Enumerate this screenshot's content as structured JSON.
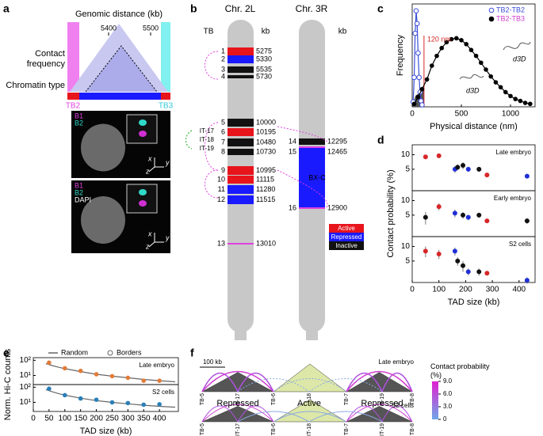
{
  "panel_labels": [
    "a",
    "b",
    "c",
    "d",
    "e",
    "f"
  ],
  "panel_a": {
    "x_title": "Genomic distance (kb)",
    "x_ticks": [
      5400,
      5500
    ],
    "row_labels": [
      "Contact frequency",
      "Chromatin type"
    ],
    "borders": [
      "TB2",
      "TB3"
    ],
    "image_1_labels": [
      "B1",
      "B2"
    ],
    "image_2_labels": [
      "B1",
      "B2",
      "DAPI"
    ],
    "axes_labels": [
      "x",
      "y",
      "z"
    ]
  },
  "panel_b": {
    "chromosomes": [
      {
        "name": "Chr. 2L",
        "bands": [
          {
            "label": "1",
            "kb": 5275,
            "color": "#e8141c"
          },
          {
            "label": "2",
            "kb": 5330,
            "color": "#1a1aff"
          },
          {
            "label": "3",
            "kb": 5535,
            "color": "#111111"
          },
          {
            "label": "4",
            "kb": 5730,
            "color": "#111111"
          },
          {
            "label": "5",
            "kb": 10000,
            "color": "#111111"
          },
          {
            "label": "6",
            "kb": 10195,
            "color": "#e8141c"
          },
          {
            "label": "7",
            "kb": 10480,
            "color": "#111111"
          },
          {
            "label": "8",
            "kb": 10730,
            "color": "#111111"
          },
          {
            "label": "9",
            "kb": 10995,
            "color": "#e8141c"
          },
          {
            "label": "10",
            "kb": 11115,
            "color": "#e8141c"
          },
          {
            "label": "11",
            "kb": 11280,
            "color": "#1a1aff"
          },
          {
            "label": "12",
            "kb": 11515,
            "color": "#1a1aff"
          },
          {
            "label": "13",
            "kb": 13010,
            "color": "#e040e0"
          }
        ]
      },
      {
        "name": "Chr. 3R",
        "bands": [
          {
            "label": "14",
            "kb": 12295,
            "color": "#111111"
          },
          {
            "label": "15",
            "kb": 12465,
            "color": "#1a1aff"
          },
          {
            "label": "16",
            "kb": 12900,
            "color": "#e040e0"
          }
        ]
      }
    ],
    "column_labels": [
      "TB",
      "kb",
      "kb"
    ],
    "inner_labels": [
      "IT-17",
      "IT-18",
      "IT-19"
    ],
    "region_label": "BX-C",
    "legend": [
      {
        "name": "Active",
        "color": "#e8141c"
      },
      {
        "name": "Repressed",
        "color": "#1a1aff"
      },
      {
        "name": "Inactive",
        "color": "#111111"
      }
    ]
  },
  "chart_data": [
    {
      "type": "scatter",
      "xlabel": "Physical distance (nm)",
      "ylabel": "Frequency",
      "xlim": [
        0,
        1250
      ],
      "xticks": [
        0,
        500,
        1000
      ],
      "ylim": [
        0,
        1.05
      ],
      "legend": "upper right",
      "series": [
        {
          "name": "TB2-TB2",
          "color": "#3b4fd8",
          "label_color": "#3b4fd8",
          "marker": "open",
          "line": true,
          "x": [
            10,
            20,
            30,
            40,
            50,
            60,
            70,
            80,
            90,
            100
          ],
          "values": [
            0.05,
            0.3,
            0.75,
            0.98,
            0.85,
            0.55,
            0.3,
            0.15,
            0.06,
            0.02
          ]
        },
        {
          "name": "TB2-TB3",
          "color": "#000000",
          "label_color": "#d040d0",
          "marker": "filled",
          "line": true,
          "x": [
            20,
            60,
            100,
            150,
            200,
            250,
            300,
            350,
            400,
            450,
            500,
            550,
            600,
            650,
            700,
            750,
            800,
            850,
            900,
            950,
            1000,
            1050,
            1100,
            1150,
            1200
          ],
          "values": [
            0.03,
            0.1,
            0.18,
            0.28,
            0.42,
            0.52,
            0.6,
            0.66,
            0.69,
            0.7,
            0.68,
            0.64,
            0.58,
            0.52,
            0.45,
            0.38,
            0.31,
            0.25,
            0.2,
            0.15,
            0.11,
            0.08,
            0.06,
            0.04,
            0.03
          ]
        }
      ],
      "annotations": [
        "120 nm",
        "d3D",
        "d3D"
      ]
    },
    {
      "type": "errorbar",
      "title": "Late embryo",
      "ylog": true,
      "xlim": [
        0,
        460
      ],
      "ylim": [
        1.8,
        16
      ],
      "yticks": [
        5,
        10
      ],
      "x": [
        50,
        100,
        160,
        170,
        190,
        210,
        250,
        280,
        430
      ],
      "values": [
        9,
        9.5,
        5,
        5.5,
        6,
        5,
        5,
        3.8,
        3.6
      ],
      "errors": [
        1,
        1,
        0.8,
        0.8,
        1,
        0.6,
        0.6,
        0.4,
        0.4
      ],
      "colors": [
        "#d62728",
        "#d62728",
        "#1f2fd6",
        "#111111",
        "#111111",
        "#1f2fd6",
        "#111111",
        "#d62728",
        "#1f2fd6"
      ]
    },
    {
      "type": "errorbar",
      "title": "Early embryo",
      "ylabel": "Contact probability (%)",
      "ylog": true,
      "xlim": [
        0,
        460
      ],
      "ylim": [
        1.8,
        16
      ],
      "yticks": [
        5,
        10
      ],
      "x": [
        50,
        100,
        160,
        190,
        210,
        250,
        280,
        430
      ],
      "values": [
        4.5,
        7.5,
        5.5,
        5,
        4.5,
        5,
        3.8,
        3.8
      ],
      "errors": [
        1.3,
        1.2,
        1,
        0.8,
        0.6,
        0.6,
        0.4,
        0.5
      ],
      "colors": [
        "#111111",
        "#d62728",
        "#1f2fd6",
        "#111111",
        "#1f2fd6",
        "#111111",
        "#d62728",
        "#111111"
      ]
    },
    {
      "type": "errorbar",
      "title": "S2 cells",
      "xlabel": "TAD size (kb)",
      "ylog": true,
      "xlim": [
        0,
        460
      ],
      "ylim": [
        1.8,
        16
      ],
      "yticks": [
        5,
        10
      ],
      "xticks": [
        0,
        100,
        200,
        300,
        400
      ],
      "x": [
        50,
        100,
        160,
        170,
        190,
        210,
        250,
        280,
        430
      ],
      "values": [
        8,
        7,
        8,
        5,
        4,
        3,
        3,
        2.8,
        2
      ],
      "errors": [
        2,
        1.5,
        1.5,
        1,
        1,
        0.5,
        0.5,
        0.3,
        0.3
      ],
      "colors": [
        "#d62728",
        "#d62728",
        "#1f2fd6",
        "#111111",
        "#111111",
        "#1f2fd6",
        "#111111",
        "#d62728",
        "#1f2fd6"
      ]
    },
    {
      "type": "line_scatter",
      "title": "Late embryo",
      "ylog": true,
      "xlim": [
        0,
        460
      ],
      "ylim": [
        2.5,
        150
      ],
      "yticks": [
        {
          "value": 10,
          "label": "10¹"
        },
        {
          "value": 100,
          "label": "10²"
        }
      ],
      "legend": "top",
      "series": [
        {
          "name": "Random",
          "color": "#666666",
          "line": true,
          "x": [
            40,
            60,
            80,
            100,
            150,
            200,
            250,
            300,
            350,
            400,
            450
          ],
          "values": [
            60,
            45,
            35,
            28,
            18,
            12,
            9,
            7,
            5.5,
            4.5,
            3.8
          ]
        },
        {
          "name": "Borders",
          "color": "#e07b39",
          "marker": "filled",
          "x": [
            50,
            100,
            150,
            200,
            250,
            300,
            350,
            400
          ],
          "values": [
            70,
            30,
            20,
            12,
            9,
            7,
            4.5,
            4.5
          ]
        }
      ]
    },
    {
      "type": "line_scatter",
      "title": "S2 cells",
      "ylabel": "Norm. Hi-C counts",
      "xlabel": "TAD size (kb)",
      "ylog": true,
      "xlim": [
        0,
        460
      ],
      "ylim": [
        2.5,
        150
      ],
      "yticks": [
        {
          "value": 10,
          "label": "10¹"
        },
        {
          "value": 100,
          "label": "10²"
        }
      ],
      "xticks": [
        0,
        50,
        100,
        150,
        200,
        250,
        300,
        350,
        400
      ],
      "series": [
        {
          "color": "#666666",
          "line": true,
          "x": [
            40,
            60,
            80,
            100,
            150,
            200,
            250,
            300,
            350,
            400,
            450
          ],
          "values": [
            70,
            50,
            38,
            30,
            19,
            13,
            10,
            8,
            6.5,
            5.5,
            4.8
          ]
        },
        {
          "color": "#2a7fb8",
          "marker": "filled",
          "x": [
            50,
            100,
            150,
            200,
            250,
            300,
            350,
            400
          ],
          "values": [
            80,
            30,
            18,
            15,
            10,
            9,
            7,
            7.5
          ]
        }
      ]
    }
  ],
  "panel_f": {
    "scale_label": "100 kb",
    "rows": [
      "Late embryo",
      "S2 cells"
    ],
    "domain_labels": [
      "Repressed",
      "Active",
      "Repressed"
    ],
    "boundary_labels": [
      "TB-5",
      "IT-17",
      "TB-6",
      "IT-18",
      "TB-7",
      "IT-19",
      "TB-8"
    ],
    "colorbar": {
      "title": "Contact probability (%)",
      "lim": [
        0,
        9
      ],
      "ticks": [
        {
          "value": 9,
          "label": "9.0"
        },
        {
          "value": 6,
          "label": "6.0"
        },
        {
          "value": 3,
          "label": "3.0"
        },
        0
      ]
    }
  }
}
